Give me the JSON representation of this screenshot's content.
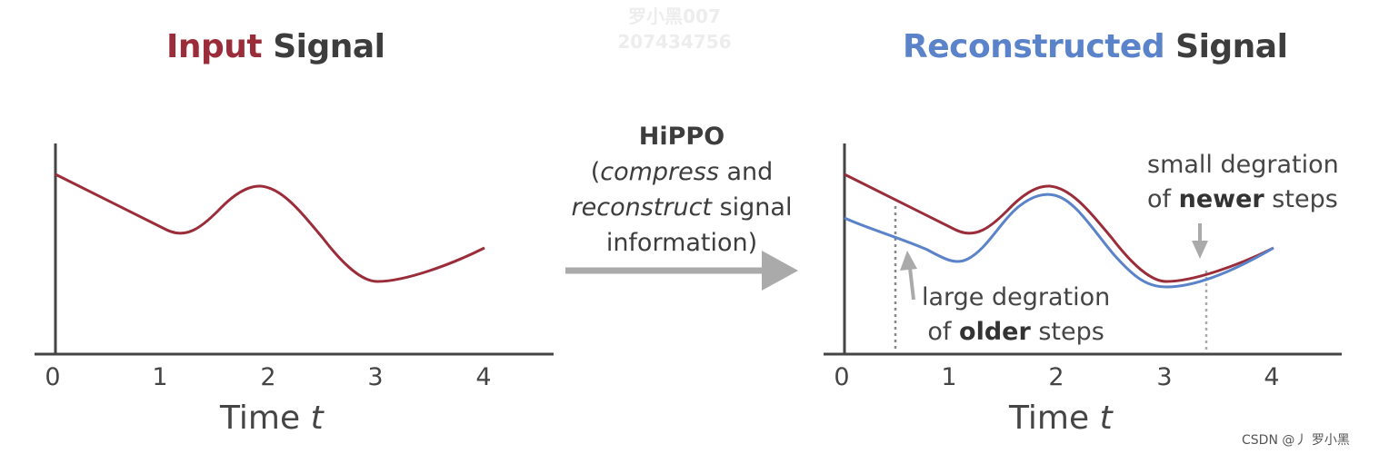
{
  "colors": {
    "input": "#9b2d3a",
    "reconstructed": "#5b83c9",
    "text": "#3d3d3d",
    "arrow": "#aaaaaa"
  },
  "left_panel": {
    "title_highlight": "Input",
    "title_rest": "Signal",
    "ticks": [
      "0",
      "1",
      "2",
      "3",
      "4"
    ],
    "xlabel_prefix": "Time",
    "xlabel_var": "t"
  },
  "middle": {
    "line1": "HiPPO",
    "line2_open": "(",
    "line2_italic": "compress",
    "line2_rest": " and",
    "line3_italic": "reconstruct",
    "line3_rest": " signal",
    "line4": "information)"
  },
  "right_panel": {
    "title_highlight": "Reconstructed",
    "title_rest": "Signal",
    "ticks": [
      "0",
      "1",
      "2",
      "3",
      "4"
    ],
    "xlabel_prefix": "Time",
    "xlabel_var": "t",
    "note_newer_line1": "small degration",
    "note_newer_pre": "of ",
    "note_newer_bold": "newer",
    "note_newer_post": " steps",
    "note_older_line1": "large degration",
    "note_older_pre": "of ",
    "note_older_bold": "older",
    "note_older_post": " steps"
  },
  "watermark": {
    "line1": "罗小黑007",
    "line2": "207434756"
  },
  "credit": "CSDN @丿 罗小黑"
}
